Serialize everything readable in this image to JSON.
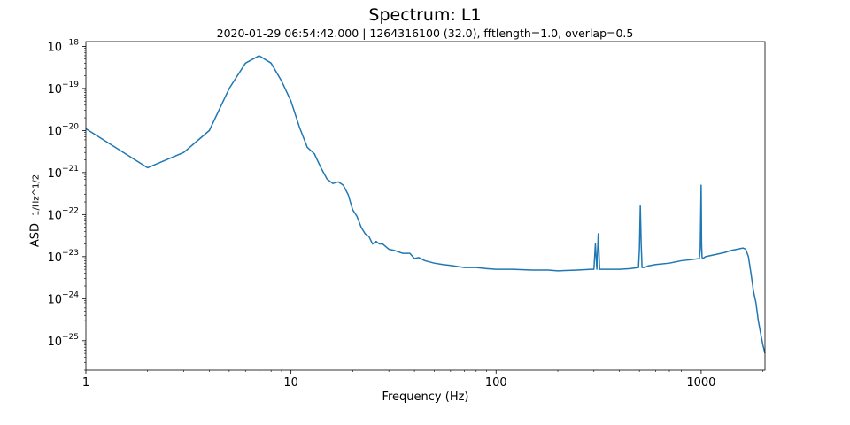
{
  "chart_data": {
    "type": "line",
    "title": "Spectrum: L1",
    "subtitle": "2020-01-29 06:54:42.000 | 1264316100 (32.0), fftlength=1.0, overlap=0.5",
    "xlabel": "Frequency (Hz)",
    "ylabel": "ASD",
    "ylabel_unit": "1/Hz^1/2",
    "x_scale": "log",
    "y_scale": "log",
    "xlim": [
      1,
      2048
    ],
    "ylim": [
      2e-26,
      1.3e-18
    ],
    "x_ticks": [
      1,
      10,
      100,
      1000
    ],
    "x_tick_labels": [
      "1",
      "10",
      "100",
      "1000"
    ],
    "y_ticks": [
      1e-25,
      1e-24,
      1e-23,
      1e-22,
      1e-21,
      1e-20,
      1e-19,
      1e-18
    ],
    "y_tick_labels": [
      {
        "base": "10",
        "exp": "−25"
      },
      {
        "base": "10",
        "exp": "−24"
      },
      {
        "base": "10",
        "exp": "−23"
      },
      {
        "base": "10",
        "exp": "−22"
      },
      {
        "base": "10",
        "exp": "−21"
      },
      {
        "base": "10",
        "exp": "−20"
      },
      {
        "base": "10",
        "exp": "−19"
      },
      {
        "base": "10",
        "exp": "−18"
      }
    ],
    "grid": false,
    "line_color": "#1f77b4",
    "series": [
      {
        "x": [
          1,
          2,
          3,
          4,
          5,
          6,
          7,
          8,
          9,
          10,
          11,
          12,
          13,
          14,
          15,
          16,
          17,
          18,
          19,
          20,
          21,
          22,
          23,
          24,
          25,
          26,
          27,
          28,
          30,
          32,
          35,
          38,
          40,
          42,
          45,
          50,
          55,
          60,
          70,
          80,
          90,
          100,
          120,
          150,
          180,
          200,
          250,
          290,
          300,
          305,
          310,
          315,
          320,
          330,
          350,
          400,
          450,
          495,
          500,
          505,
          510,
          515,
          520,
          530,
          550,
          600,
          700,
          800,
          900,
          980,
          990,
          1000,
          1005,
          1010,
          1015,
          1020,
          1050,
          1100,
          1200,
          1300,
          1400,
          1500,
          1600,
          1650,
          1700,
          1750,
          1800,
          1850,
          1900,
          1950,
          2000,
          2048
        ],
        "y": [
          1.1e-20,
          1.3e-21,
          3e-21,
          1e-20,
          1e-19,
          4e-19,
          6e-19,
          4e-19,
          1.5e-19,
          5e-20,
          1.2e-20,
          4e-21,
          2.8e-21,
          1.3e-21,
          7e-22,
          5.5e-22,
          6e-22,
          5e-22,
          3e-22,
          1.3e-22,
          9e-23,
          5e-23,
          3.5e-23,
          3e-23,
          2e-23,
          2.3e-23,
          2e-23,
          2e-23,
          1.5e-23,
          1.4e-23,
          1.2e-23,
          1.2e-23,
          9e-24,
          9.5e-24,
          8e-24,
          7e-24,
          6.5e-24,
          6.2e-24,
          5.5e-24,
          5.5e-24,
          5.2e-24,
          5e-24,
          5e-24,
          4.8e-24,
          4.8e-24,
          4.6e-24,
          4.8e-24,
          5e-24,
          5e-24,
          2e-23,
          5e-24,
          3.5e-23,
          5e-24,
          5e-24,
          5e-24,
          5e-24,
          5.2e-24,
          5.5e-24,
          1.5e-23,
          1.6e-22,
          2e-23,
          5.5e-24,
          5.5e-24,
          5.5e-24,
          6e-24,
          6.5e-24,
          7e-24,
          8e-24,
          8.5e-24,
          9e-24,
          1.5e-23,
          5e-22,
          2e-23,
          1e-23,
          9e-24,
          9e-24,
          1e-23,
          1.05e-23,
          1.15e-23,
          1.25e-23,
          1.4e-23,
          1.5e-23,
          1.6e-23,
          1.5e-23,
          1e-23,
          4e-24,
          1.5e-24,
          8e-25,
          3e-25,
          1.5e-25,
          8e-26,
          5e-26
        ]
      }
    ]
  }
}
